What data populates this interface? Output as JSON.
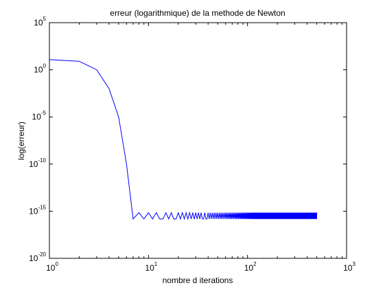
{
  "chart_data": {
    "type": "line",
    "title": "erreur (logarithmique) de la methode de Newton",
    "xlabel": "nombre d iterations",
    "ylabel": "log(erreur)",
    "xscale": "log",
    "yscale": "log",
    "xlim": [
      1,
      1000
    ],
    "ylim": [
      1e-20,
      100000
    ],
    "grid": false,
    "legend": null,
    "x_ticks": [
      {
        "base": "10",
        "exp": "0",
        "value": 1
      },
      {
        "base": "10",
        "exp": "1",
        "value": 10
      },
      {
        "base": "10",
        "exp": "2",
        "value": 100
      },
      {
        "base": "10",
        "exp": "3",
        "value": 1000
      }
    ],
    "y_ticks": [
      {
        "base": "10",
        "exp": "-20",
        "value": 1e-20
      },
      {
        "base": "10",
        "exp": "-15",
        "value": 1e-15
      },
      {
        "base": "10",
        "exp": "-10",
        "value": 1e-10
      },
      {
        "base": "10",
        "exp": "-5",
        "value": 1e-05
      },
      {
        "base": "10",
        "exp": "0",
        "value": 1
      },
      {
        "base": "10",
        "exp": "5",
        "value": 100000
      }
    ],
    "series": [
      {
        "color": "#0000ff",
        "initial_points": [
          {
            "x": 1,
            "y": 12
          },
          {
            "x": 2,
            "y": 8
          },
          {
            "x": 3,
            "y": 1
          },
          {
            "x": 4,
            "y": 0.01
          },
          {
            "x": 5,
            "y": 1e-05
          },
          {
            "x": 6,
            "y": 1e-10
          },
          {
            "x": 7,
            "y": 1.5e-16
          }
        ],
        "tail": {
          "x_start": 8,
          "x_end": 500,
          "y_high": 7e-16,
          "y_low": 1.5e-16,
          "pattern": "repeating V: high at irregular n, low otherwise; denser toward x = 500"
        }
      }
    ]
  }
}
